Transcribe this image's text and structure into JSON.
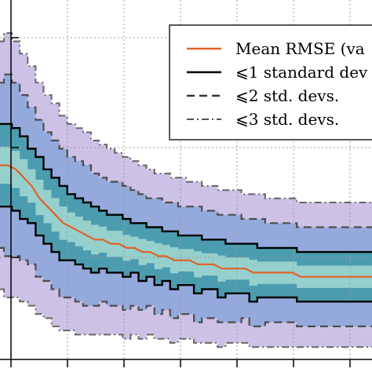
{
  "chart_data": {
    "type": "area",
    "title": "",
    "xlabel": "",
    "ylabel": "",
    "grid": true,
    "legend_placement": "top-right",
    "colors": {
      "mean": "#e0622a",
      "sd1": "#000000",
      "sd2": "#4d4d4d",
      "sd3": "#666666",
      "fill_outer": "#c4b6e0",
      "fill_mid": "#8aa6dc",
      "fill_inner": "#3f9aa8",
      "fill_core": "#9fd6cf"
    },
    "legend": [
      {
        "key": "mean",
        "label": "Mean RMSE (va",
        "style": "solid-orange"
      },
      {
        "key": "sd1",
        "label": "⩽1 standard dev",
        "style": "solid-black"
      },
      {
        "key": "sd2",
        "label": "⩽2 std. devs.",
        "style": "dashed"
      },
      {
        "key": "sd3",
        "label": "⩽3 std. devs.",
        "style": "dashdot"
      }
    ],
    "x": [
      0,
      1,
      2,
      3,
      4,
      5,
      6,
      7,
      8,
      9,
      10,
      11,
      12,
      13,
      14,
      15,
      16,
      17,
      18,
      19,
      20,
      21,
      22,
      23,
      24,
      25,
      26,
      27,
      28,
      29,
      30,
      31,
      32,
      33,
      34,
      35,
      36,
      37,
      38,
      39,
      40,
      41,
      42,
      43,
      44,
      45,
      46,
      47
    ],
    "series": [
      {
        "name": "Mean RMSE (va",
        "key": "mean",
        "values": [
          0.6,
          0.6,
          0.59,
          0.57,
          0.55,
          0.52,
          0.5,
          0.48,
          0.46,
          0.45,
          0.44,
          0.43,
          0.42,
          0.42,
          0.41,
          0.41,
          0.4,
          0.4,
          0.39,
          0.39,
          0.38,
          0.38,
          0.37,
          0.37,
          0.37,
          0.36,
          0.36,
          0.36,
          0.35,
          0.35,
          0.35,
          0.35,
          0.34,
          0.34,
          0.34,
          0.34,
          0.34,
          0.34,
          0.33,
          0.33,
          0.33,
          0.33,
          0.33,
          0.33,
          0.33,
          0.33,
          0.33,
          0.33
        ]
      },
      {
        "key": "sd1_upper",
        "values": [
          0.7,
          0.7,
          0.69,
          0.67,
          0.64,
          0.62,
          0.59,
          0.57,
          0.55,
          0.53,
          0.52,
          0.51,
          0.5,
          0.49,
          0.48,
          0.48,
          0.47,
          0.46,
          0.46,
          0.45,
          0.45,
          0.44,
          0.44,
          0.43,
          0.43,
          0.43,
          0.42,
          0.42,
          0.42,
          0.41,
          0.41,
          0.41,
          0.41,
          0.4,
          0.4,
          0.4,
          0.4,
          0.4,
          0.39,
          0.39,
          0.39,
          0.39,
          0.39,
          0.39,
          0.39,
          0.39,
          0.39,
          0.39
        ]
      },
      {
        "key": "sd1_lower",
        "values": [
          0.5,
          0.5,
          0.49,
          0.47,
          0.46,
          0.43,
          0.41,
          0.39,
          0.37,
          0.37,
          0.36,
          0.35,
          0.34,
          0.35,
          0.34,
          0.34,
          0.33,
          0.34,
          0.32,
          0.33,
          0.31,
          0.32,
          0.3,
          0.31,
          0.31,
          0.29,
          0.3,
          0.3,
          0.28,
          0.29,
          0.29,
          0.29,
          0.27,
          0.28,
          0.28,
          0.28,
          0.28,
          0.28,
          0.27,
          0.27,
          0.27,
          0.27,
          0.27,
          0.27,
          0.27,
          0.27,
          0.27,
          0.27
        ]
      },
      {
        "key": "sd2_upper",
        "values": [
          0.8,
          0.82,
          0.8,
          0.77,
          0.74,
          0.71,
          0.68,
          0.66,
          0.64,
          0.62,
          0.61,
          0.6,
          0.58,
          0.57,
          0.56,
          0.56,
          0.55,
          0.54,
          0.53,
          0.52,
          0.52,
          0.51,
          0.51,
          0.5,
          0.5,
          0.5,
          0.49,
          0.49,
          0.48,
          0.48,
          0.48,
          0.47,
          0.47,
          0.47,
          0.46,
          0.46,
          0.46,
          0.46,
          0.45,
          0.45,
          0.45,
          0.45,
          0.45,
          0.45,
          0.45,
          0.45,
          0.45,
          0.45
        ]
      },
      {
        "key": "sd2_lower",
        "values": [
          0.4,
          0.38,
          0.38,
          0.37,
          0.36,
          0.33,
          0.32,
          0.3,
          0.28,
          0.28,
          0.27,
          0.26,
          0.26,
          0.27,
          0.26,
          0.26,
          0.25,
          0.26,
          0.25,
          0.26,
          0.24,
          0.25,
          0.23,
          0.24,
          0.24,
          0.22,
          0.23,
          0.23,
          0.22,
          0.22,
          0.22,
          0.23,
          0.21,
          0.21,
          0.22,
          0.22,
          0.22,
          0.22,
          0.21,
          0.21,
          0.21,
          0.21,
          0.21,
          0.21,
          0.21,
          0.21,
          0.21,
          0.21
        ]
      },
      {
        "key": "sd3_upper",
        "values": [
          0.9,
          0.92,
          0.9,
          0.87,
          0.84,
          0.8,
          0.77,
          0.75,
          0.72,
          0.7,
          0.69,
          0.68,
          0.66,
          0.65,
          0.64,
          0.63,
          0.62,
          0.61,
          0.6,
          0.59,
          0.58,
          0.58,
          0.57,
          0.57,
          0.56,
          0.56,
          0.55,
          0.55,
          0.54,
          0.54,
          0.54,
          0.53,
          0.53,
          0.53,
          0.52,
          0.52,
          0.52,
          0.52,
          0.51,
          0.51,
          0.51,
          0.51,
          0.51,
          0.51,
          0.51,
          0.51,
          0.51,
          0.51
        ]
      },
      {
        "key": "sd3_lower",
        "values": [
          0.3,
          0.28,
          0.28,
          0.27,
          0.26,
          0.24,
          0.23,
          0.21,
          0.2,
          0.2,
          0.19,
          0.19,
          0.19,
          0.19,
          0.19,
          0.19,
          0.18,
          0.19,
          0.18,
          0.19,
          0.18,
          0.18,
          0.17,
          0.18,
          0.18,
          0.17,
          0.17,
          0.17,
          0.16,
          0.17,
          0.17,
          0.17,
          0.16,
          0.16,
          0.16,
          0.16,
          0.16,
          0.16,
          0.16,
          0.16,
          0.16,
          0.16,
          0.16,
          0.16,
          0.16,
          0.16,
          0.16,
          0.16
        ]
      }
    ],
    "xlim": [
      0,
      47
    ],
    "ylim": [
      0.13,
      1.0
    ]
  }
}
